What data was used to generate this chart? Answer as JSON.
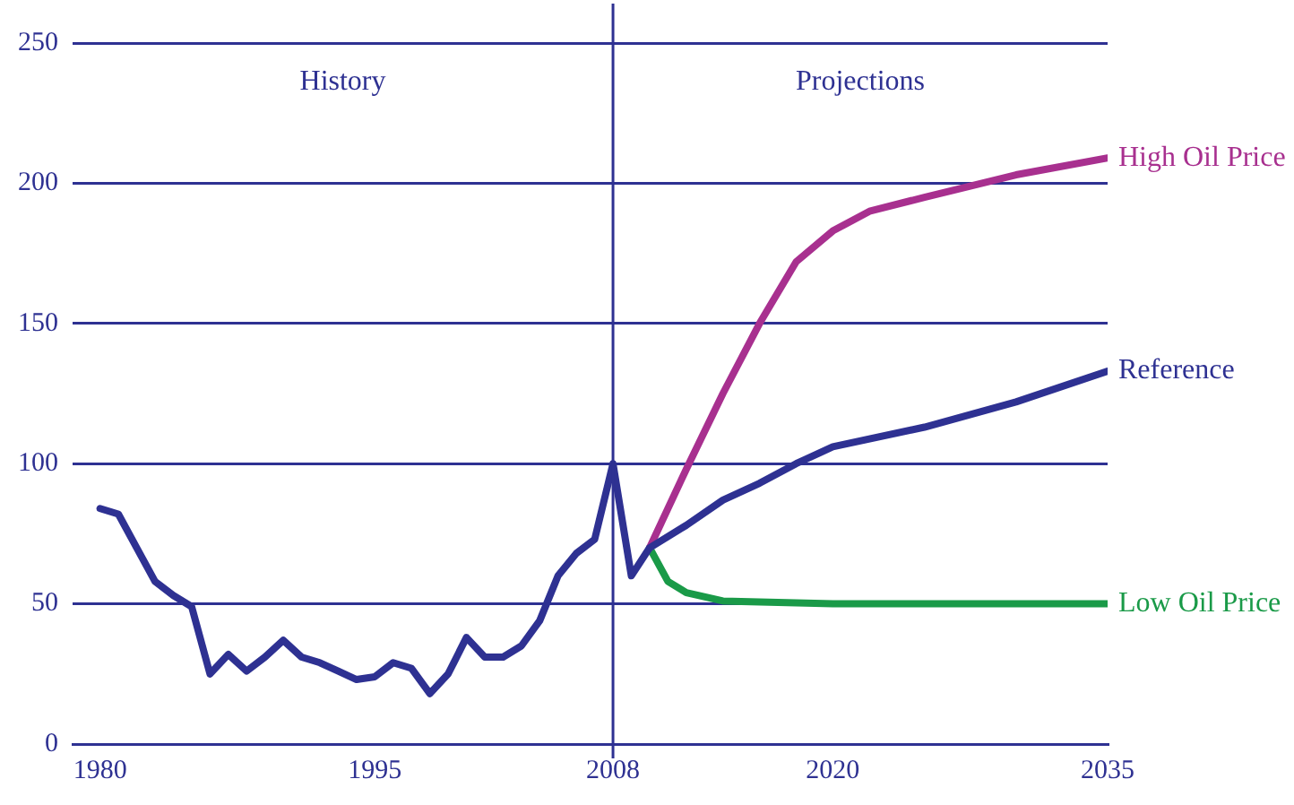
{
  "chart_data": {
    "type": "line",
    "x": [
      1980,
      1981,
      1982,
      1983,
      1984,
      1985,
      1986,
      1987,
      1988,
      1989,
      1990,
      1991,
      1992,
      1993,
      1994,
      1995,
      1996,
      1997,
      1998,
      1999,
      2000,
      2001,
      2002,
      2003,
      2004,
      2005,
      2006,
      2007,
      2008,
      2009,
      2010,
      2012,
      2014,
      2016,
      2018,
      2020,
      2025,
      2030,
      2035
    ],
    "series": [
      {
        "name": "Reference",
        "color": "#2e3192",
        "values": [
          84,
          82,
          70,
          58,
          53,
          49,
          25,
          32,
          26,
          31,
          37,
          31,
          29,
          26,
          23,
          24,
          29,
          27,
          18,
          25,
          38,
          31,
          31,
          35,
          44,
          60,
          68,
          73,
          100,
          60,
          70,
          78,
          87,
          93,
          100,
          106,
          113,
          122,
          133
        ]
      },
      {
        "name": "High Oil Price",
        "color": "#a8308f",
        "x": [
          2010,
          2012,
          2014,
          2016,
          2018,
          2020,
          2022,
          2025,
          2030,
          2035
        ],
        "values": [
          70,
          98,
          125,
          150,
          172,
          183,
          190,
          195,
          203,
          209
        ]
      },
      {
        "name": "Low Oil Price",
        "color": "#1a9a48",
        "x": [
          2010,
          2011,
          2012,
          2014,
          2020,
          2035
        ],
        "values": [
          70,
          58,
          54,
          51,
          50,
          50
        ]
      }
    ],
    "xlim": [
      1978.5,
      2035
    ],
    "xticks": [
      1980,
      1995,
      2008,
      2020,
      2035
    ],
    "ylim": [
      0,
      250
    ],
    "yticks": [
      0,
      50,
      100,
      150,
      200,
      250
    ],
    "grid": "y",
    "legend": false,
    "marker": "none",
    "line_style": "solid",
    "ref_lines": [
      {
        "axis": "x",
        "value": 2008,
        "color": "#2e3192"
      }
    ],
    "annotations": [
      "History",
      "Projections"
    ]
  }
}
